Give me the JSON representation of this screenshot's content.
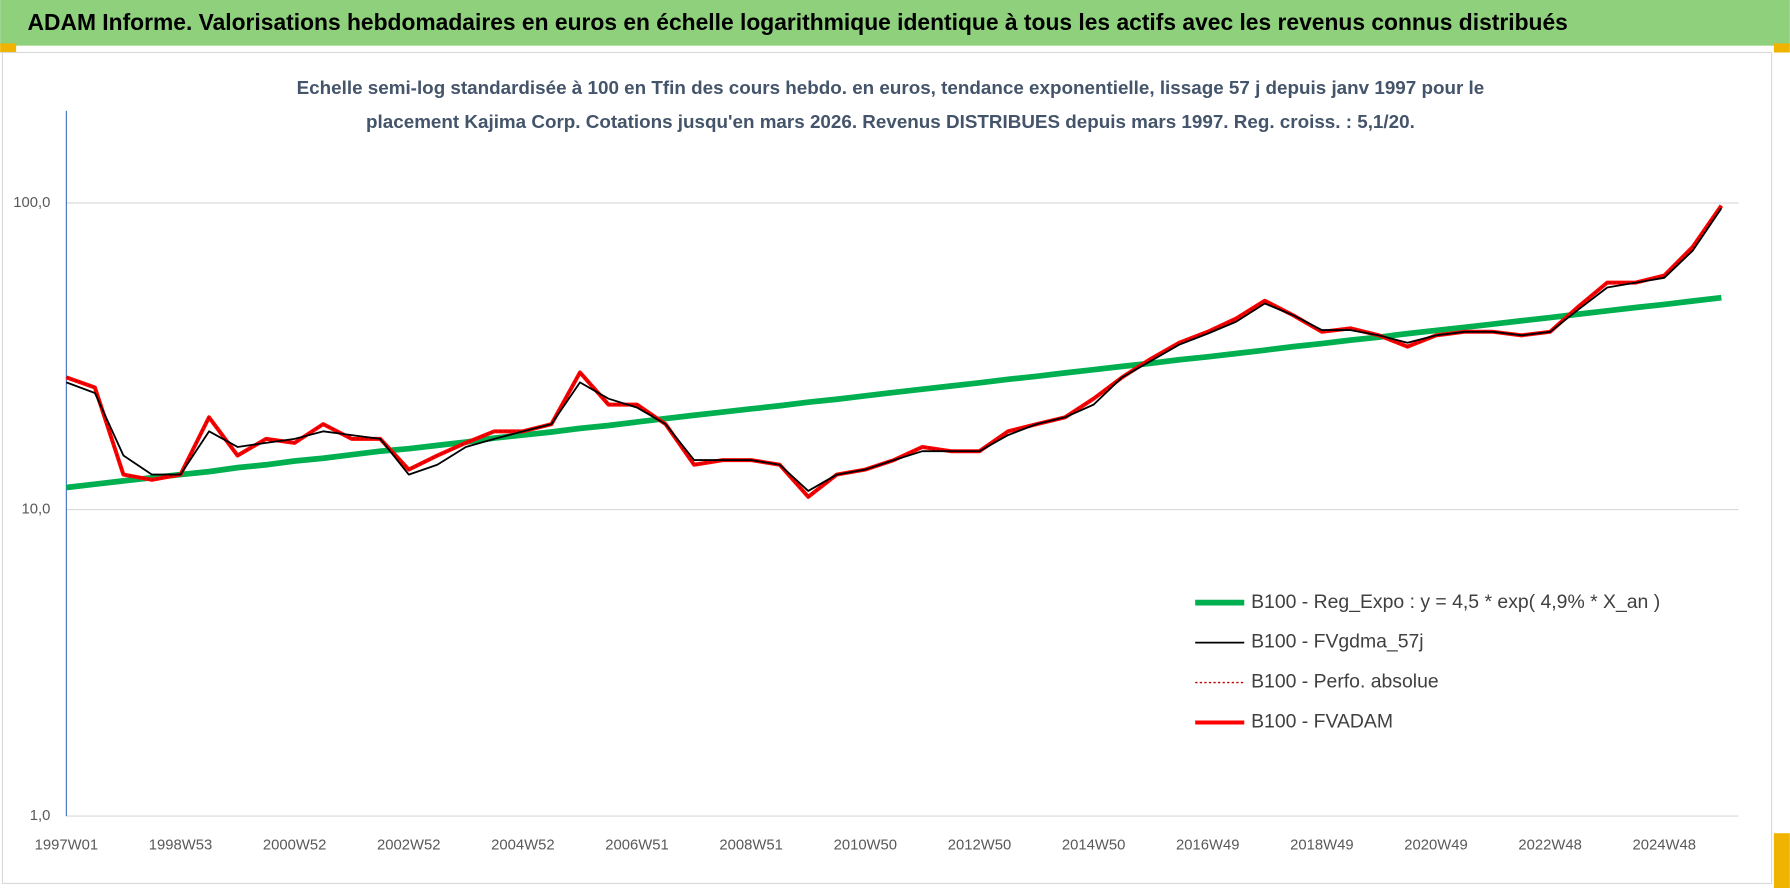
{
  "chart_data": {
    "type": "line",
    "title": "ADAM Informe. Valorisations hebdomadaires en euros en échelle logarithmique identique à tous les actifs avec les revenus connus distribués",
    "subtitle_lines": [
      "Echelle semi-log standardisée à 100 en Tfin des cours hebdo. en euros, tendance exponentielle, lissage 57 j depuis janv 1997 pour le",
      "placement Kajima Corp. Cotations jusqu'en mars 2026. Revenus DISTRIBUES depuis mars 1997. Reg. croiss. : 5,1/20."
    ],
    "categories": [
      "1997W01",
      null,
      null,
      null,
      "1998W53",
      null,
      null,
      null,
      "2000W52",
      null,
      null,
      null,
      "2002W52",
      null,
      null,
      null,
      "2004W52",
      null,
      null,
      null,
      "2006W51",
      null,
      null,
      null,
      "2008W51",
      null,
      null,
      null,
      "2010W50",
      null,
      null,
      null,
      "2012W50",
      null,
      null,
      null,
      "2014W50",
      null,
      null,
      null,
      "2016W49",
      null,
      null,
      null,
      "2018W49",
      null,
      null,
      null,
      "2020W49",
      null,
      null,
      null,
      "2022W48",
      null,
      null,
      null,
      "2024W48",
      null,
      null
    ],
    "log_scale": true,
    "ylim": [
      1,
      200
    ],
    "yticks": [
      {
        "value": 1,
        "label": "1,0"
      },
      {
        "value": 10,
        "label": "10,0"
      },
      {
        "value": 100,
        "label": "100,0"
      }
    ],
    "grid": true,
    "legend": "lower right",
    "series": [
      {
        "name": "B100 - Reg_Expo : y = 4,5 * exp( 4,9% *  X_an )",
        "color": "#00b050",
        "style": "solid",
        "values": [
          11.8,
          12.1,
          12.4,
          12.7,
          13.0,
          13.3,
          13.7,
          14.0,
          14.4,
          14.7,
          15.1,
          15.5,
          15.8,
          16.2,
          16.6,
          17.1,
          17.5,
          17.9,
          18.4,
          18.8,
          19.3,
          19.8,
          20.3,
          20.8,
          21.3,
          21.8,
          22.4,
          22.9,
          23.5,
          24.1,
          24.7,
          25.3,
          25.9,
          26.6,
          27.2,
          27.9,
          28.6,
          29.3,
          30.0,
          30.8,
          31.5,
          32.3,
          33.1,
          34.0,
          34.8,
          35.7,
          36.5,
          37.5,
          38.4,
          39.3,
          40.3,
          41.3,
          42.3,
          43.4,
          44.5,
          45.6,
          46.7,
          47.9,
          49.1
        ]
      },
      {
        "name": "B100 - FVgdma_57j",
        "color": "#000000",
        "style": "solid",
        "values": [
          26,
          24,
          15,
          13,
          13,
          18,
          16,
          16.5,
          17,
          18,
          17.5,
          17,
          13,
          14,
          16,
          17,
          18,
          19,
          26,
          23,
          21.5,
          19,
          14.5,
          14.5,
          14.5,
          14,
          11.5,
          13,
          13.5,
          14.5,
          15.5,
          15.5,
          15.5,
          17.5,
          19,
          20,
          22,
          27,
          30.5,
          34.5,
          37.5,
          41,
          47,
          43,
          38.5,
          38.5,
          37,
          35,
          37,
          38,
          38,
          37,
          38,
          45,
          53,
          55,
          57,
          70,
          96
        ]
      },
      {
        "name": "B100 - Perfo. absolue",
        "color": "#c00000",
        "style": "dotted",
        "values": [
          27,
          25,
          13,
          12.5,
          13,
          20,
          15,
          17,
          16.5,
          19,
          17,
          17,
          13.5,
          15,
          16.5,
          18,
          18,
          19,
          28,
          22,
          22,
          19,
          14,
          14.5,
          14.5,
          14,
          11,
          13,
          13.5,
          14.5,
          16,
          15.5,
          15.5,
          18,
          19,
          20,
          23,
          27,
          31,
          35,
          38,
          42,
          48,
          43,
          38,
          39,
          37,
          34,
          37,
          38,
          38,
          37,
          38,
          46,
          55,
          55,
          58,
          72,
          98
        ]
      },
      {
        "name": "B100 - FVADAM",
        "color": "#ff0000",
        "style": "solid",
        "values": [
          27,
          25,
          13,
          12.5,
          13,
          20,
          15,
          17,
          16.5,
          19,
          17,
          17,
          13.5,
          15,
          16.5,
          18,
          18,
          19,
          28,
          22,
          22,
          19,
          14,
          14.5,
          14.5,
          14,
          11,
          13,
          13.5,
          14.5,
          16,
          15.5,
          15.5,
          18,
          19,
          20,
          23,
          27,
          31,
          35,
          38,
          42,
          48,
          43,
          38,
          39,
          37,
          34,
          37,
          38,
          38,
          37,
          38,
          46,
          55,
          55,
          58,
          72,
          98
        ]
      }
    ]
  }
}
